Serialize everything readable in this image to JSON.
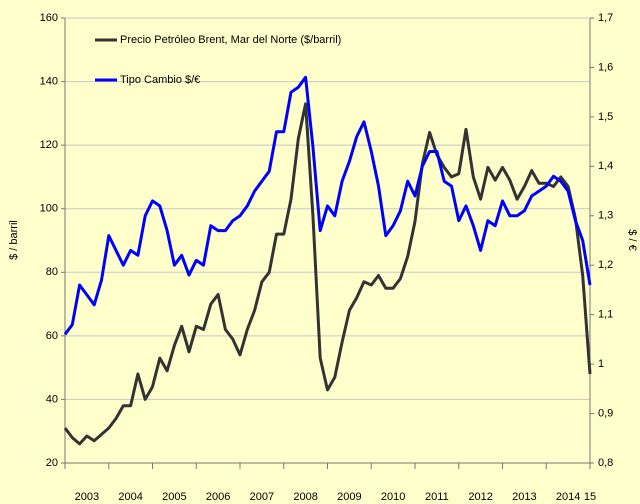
{
  "chart_data": {
    "type": "line",
    "y_label": "$ / barril",
    "y2_label": "$ / €",
    "x_labels": [
      "2003",
      "2004",
      "2005",
      "2006",
      "2007",
      "2008",
      "2009",
      "2010",
      "2011",
      "2012",
      "2013",
      "2014",
      "15"
    ],
    "ylim": [
      20,
      160
    ],
    "yticks": [
      20,
      40,
      60,
      80,
      100,
      120,
      140,
      160
    ],
    "y2lim": [
      0.8,
      1.7
    ],
    "y2ticks": [
      {
        "value": 0.8,
        "label": "0,8"
      },
      {
        "value": 0.9,
        "label": "0,9"
      },
      1,
      {
        "value": 1.1,
        "label": "1,1"
      },
      {
        "value": 1.2,
        "label": "1,2"
      },
      {
        "value": 1.3,
        "label": "1,3"
      },
      {
        "value": 1.4,
        "label": "1,4"
      },
      {
        "value": 1.5,
        "label": "1,5"
      },
      {
        "value": 1.6,
        "label": "1,6"
      },
      {
        "value": 1.7,
        "label": "1,7"
      }
    ],
    "grid": true,
    "legend": "top-left",
    "series": [
      {
        "name": "Precio Petróleo Brent, Mar del Norte ($/barril)",
        "color": "#333333",
        "values": [
          31,
          28,
          26,
          28.5,
          27,
          29,
          31,
          34,
          38,
          38,
          48,
          40,
          44,
          53,
          49,
          57,
          63,
          55,
          63,
          62,
          70,
          73,
          62,
          59,
          54,
          62,
          68,
          77,
          80,
          92,
          92,
          103,
          122,
          133,
          98,
          53,
          43,
          47,
          58,
          68,
          72,
          77,
          76,
          79,
          75,
          75,
          78,
          85,
          96,
          114,
          124,
          117,
          113,
          110,
          111,
          125,
          110,
          103,
          113,
          109,
          113,
          109,
          103,
          107,
          112,
          108,
          108,
          107,
          110,
          107,
          97,
          79,
          48
        ]
      },
      {
        "name": "Tipo Cambio $/€",
        "color": "#0000ff",
        "axis": "y2",
        "values": [
          1.06,
          1.08,
          1.16,
          1.14,
          1.12,
          1.17,
          1.26,
          1.23,
          1.2,
          1.23,
          1.22,
          1.3,
          1.33,
          1.32,
          1.27,
          1.2,
          1.22,
          1.18,
          1.21,
          1.2,
          1.28,
          1.27,
          1.27,
          1.29,
          1.3,
          1.32,
          1.35,
          1.37,
          1.39,
          1.47,
          1.47,
          1.55,
          1.56,
          1.58,
          1.44,
          1.27,
          1.32,
          1.3,
          1.37,
          1.41,
          1.46,
          1.49,
          1.43,
          1.36,
          1.26,
          1.28,
          1.31,
          1.37,
          1.34,
          1.4,
          1.43,
          1.43,
          1.37,
          1.36,
          1.29,
          1.32,
          1.28,
          1.23,
          1.29,
          1.28,
          1.33,
          1.3,
          1.3,
          1.31,
          1.34,
          1.35,
          1.36,
          1.38,
          1.37,
          1.35,
          1.29,
          1.25,
          1.16
        ]
      }
    ]
  }
}
